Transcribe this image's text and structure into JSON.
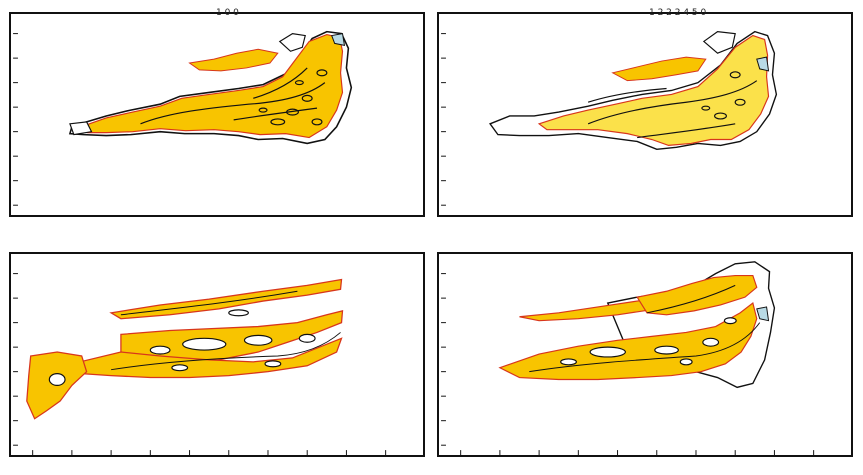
{
  "figure": {
    "panel_count": 4,
    "colors": {
      "fill_primary": "#f8c400",
      "fill_highlight": "#fbe14a",
      "edge_points": "#d8361c",
      "outline": "#111111",
      "water_light": "#b9dbe6",
      "background": "#ffffff"
    },
    "panels": [
      {
        "name": "top-left",
        "pattern": "yellow-fill-with-outline"
      },
      {
        "name": "top-right",
        "pattern": "yellow-fill-partial-outline"
      },
      {
        "name": "bottom-left",
        "pattern": "fragmented-yellow-dots"
      },
      {
        "name": "bottom-right",
        "pattern": "mixed-fill-with-outline"
      }
    ],
    "top_axis_text": [
      "1 0 0",
      "1 2 2 2 4 5 0"
    ]
  }
}
